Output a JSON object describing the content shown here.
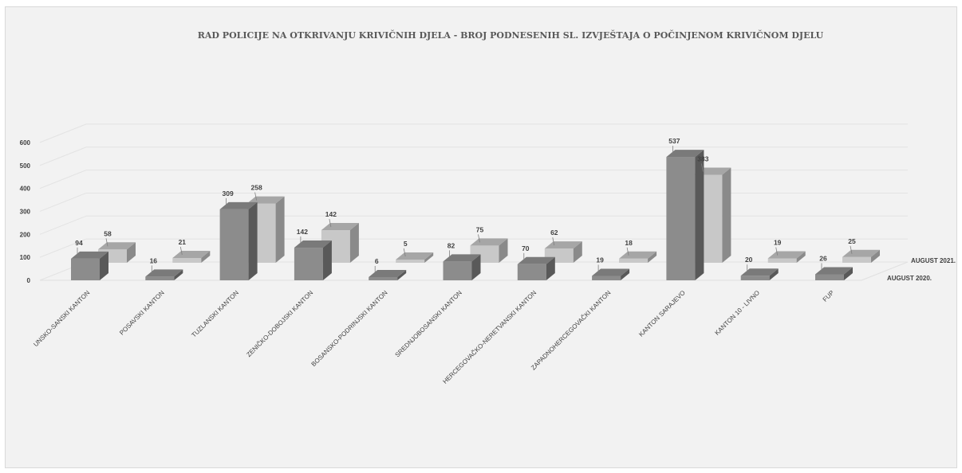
{
  "chart_data": {
    "type": "bar",
    "title": "RAD POLICIJE NA OTKRIVANJU KRIVIČNIH DJELA  -  BROJ PODNESENIH SL. IZVJEŠTAJA O POČINJENOM KRIVIČNOM DJELU",
    "categories": [
      "UNSKO-SANSKI KANTON",
      "POSAVSKI KANTON",
      "TUZLANSKI KANTON",
      "ZENIČKO-DOBOJSKI KANTON",
      "BOSANSKO-PODRINJSKI KANTON",
      "SREDNJOBOSANSKI KANTON",
      "HERCEGOVAČKO-NERETVANSKI KANTON",
      "ZAPADNOHERCEGOVAČKI KANTON",
      "KANTON SARAJEVO",
      "KANTON 10 - LIVNO",
      "FUP"
    ],
    "series": [
      {
        "name": "AUGUST 2020.",
        "values": [
          94,
          16,
          309,
          142,
          6,
          82,
          70,
          19,
          537,
          20,
          26
        ]
      },
      {
        "name": "AUGUST 2021.",
        "values": [
          58,
          21,
          258,
          142,
          5,
          75,
          62,
          18,
          383,
          19,
          25
        ]
      }
    ],
    "yticks": [
      "0",
      "100",
      "200",
      "300",
      "400",
      "500",
      "600"
    ],
    "ylim": [
      0,
      600
    ],
    "grid": true,
    "legend": "right",
    "colors": {
      "front_series": "#8c8c8c",
      "back_series": "#c8c8c8"
    }
  }
}
